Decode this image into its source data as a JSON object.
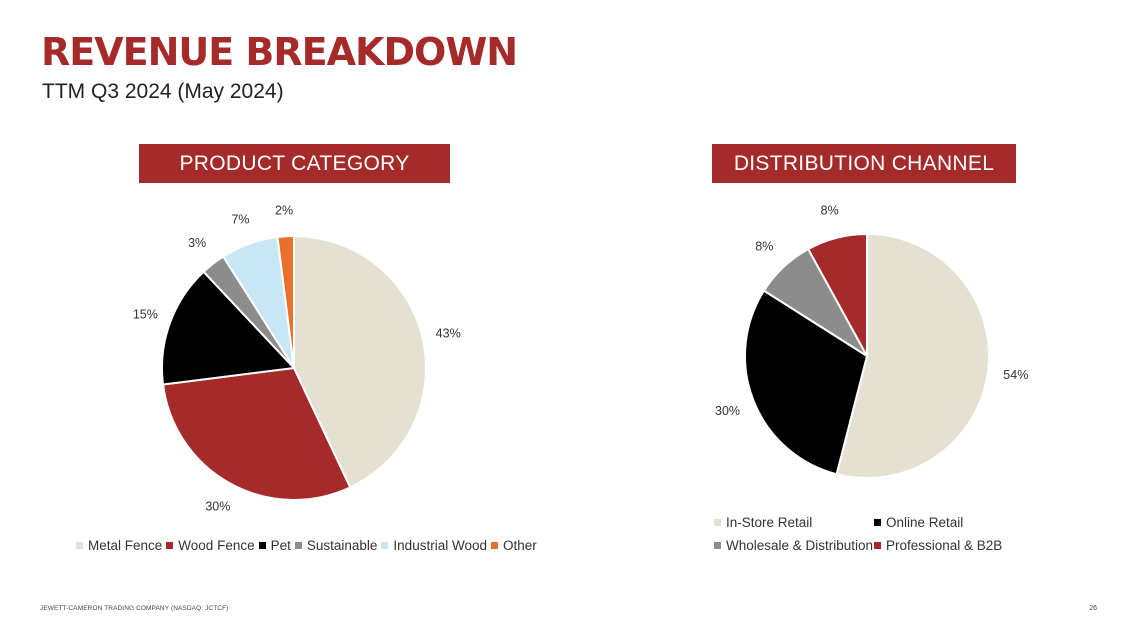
{
  "header": {
    "title": "REVENUE BREAKDOWN",
    "subtitle": "TTM Q3 2024 (May 2024)"
  },
  "footer": {
    "company": "JEWETT-CAMERON TRADING COMPANY (NASDAQ: JCTCF)",
    "page_number": "26"
  },
  "colors": {
    "brand_red": "#a52a2a",
    "metal_fence": "#e5e1d1",
    "wood_fence": "#a52a2a",
    "pet": "#000000",
    "sustainable": "#8c8c8c",
    "industrial_wood": "#c8e6f5",
    "other": "#e8722c"
  },
  "chart_data": [
    {
      "type": "pie",
      "title": "PRODUCT CATEGORY",
      "categories": [
        "Metal Fence",
        "Wood Fence",
        "Pet",
        "Sustainable",
        "Industrial Wood",
        "Other"
      ],
      "values": [
        43,
        30,
        15,
        3,
        7,
        2
      ],
      "labels": [
        "43%",
        "30%",
        "15%",
        "3%",
        "7%",
        "2%"
      ],
      "colors": [
        "#e5e1d1",
        "#a52a2a",
        "#000000",
        "#8c8c8c",
        "#c8e6f5",
        "#e8722c"
      ],
      "legend_position": "bottom"
    },
    {
      "type": "pie",
      "title": "DISTRIBUTION CHANNEL",
      "categories": [
        "In-Store Retail",
        "Online Retail",
        "Wholesale & Distribution",
        "Professional & B2B"
      ],
      "values": [
        54,
        30,
        8,
        8
      ],
      "labels": [
        "54%",
        "30%",
        "8%",
        "8%"
      ],
      "colors": [
        "#e5e1d1",
        "#000000",
        "#8c8c8c",
        "#a52a2a"
      ],
      "legend_position": "bottom"
    }
  ]
}
